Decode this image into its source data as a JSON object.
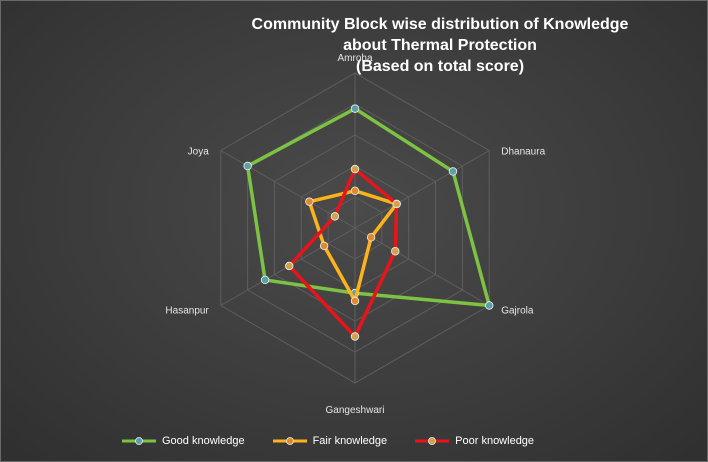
{
  "chart_data": {
    "type": "radar",
    "title_lines": [
      "Community Block wise distribution of Knowledge",
      "about Thermal Protection",
      "(Based on total score)"
    ],
    "categories": [
      "Amroha",
      "Dhanaura",
      "Gajrola",
      "Gangeshwari",
      "Hasanpur",
      "Joya"
    ],
    "rlim": [
      0,
      100
    ],
    "grid": true,
    "legend_position": "bottom",
    "series": [
      {
        "name": "Good knowledge",
        "values": [
          77,
          73,
          100,
          42,
          67,
          80
        ],
        "color": "#7dc242",
        "marker_color": "#5aa0a8"
      },
      {
        "name": "Fair knowledge",
        "values": [
          24,
          31,
          12,
          47,
          23,
          34
        ],
        "color": "#ffb31a",
        "marker_color": "#e08a2e"
      },
      {
        "name": "Poor knowledge",
        "values": [
          38,
          31,
          30,
          70,
          49,
          15
        ],
        "color": "#e8141a",
        "marker_color": "#d2a24c"
      }
    ]
  }
}
